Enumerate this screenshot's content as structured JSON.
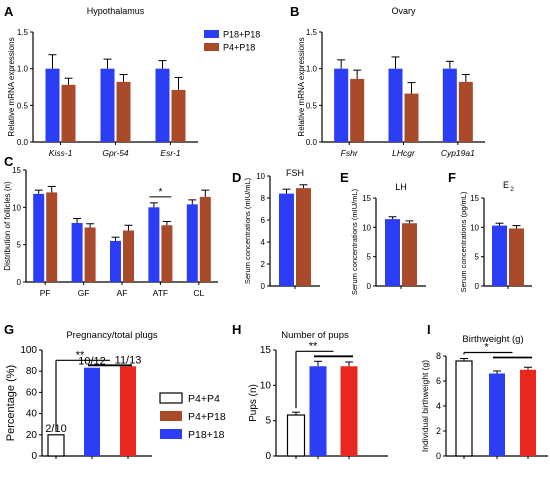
{
  "colors": {
    "blue": "#2b3df5",
    "brown": "#a94a2a",
    "red": "#e8281e",
    "white": "#ffffff",
    "axis": "#000000"
  },
  "chart_data": [
    {
      "panel": "A",
      "type": "bar",
      "title": "Hypothalamus",
      "ylabel": "Relative mRNA expressions",
      "categories": [
        "Kiss-1",
        "Gpr-54",
        "Esr-1"
      ],
      "ylim": [
        0,
        1.5
      ],
      "yticks": [
        "0.0",
        "0.5",
        "1.0",
        "1.5"
      ],
      "series": [
        {
          "name": "P18+P18",
          "color": "blue",
          "values": [
            1.0,
            1.0,
            1.0
          ],
          "errors": [
            0.19,
            0.13,
            0.11
          ]
        },
        {
          "name": "P4+P18",
          "color": "brown",
          "values": [
            0.78,
            0.82,
            0.71
          ],
          "errors": [
            0.09,
            0.1,
            0.17
          ]
        }
      ],
      "legend": "top-right"
    },
    {
      "panel": "B",
      "type": "bar",
      "title": "Ovary",
      "ylabel": "Relative mRNA expressions",
      "categories": [
        "Fshr",
        "LHcgr",
        "Cyp19a1"
      ],
      "ylim": [
        0,
        1.5
      ],
      "yticks": [
        "0.0",
        "0.5",
        "1.0",
        "1.5"
      ],
      "series": [
        {
          "color": "blue",
          "values": [
            1.0,
            1.0,
            1.0
          ],
          "errors": [
            0.12,
            0.16,
            0.1
          ]
        },
        {
          "color": "brown",
          "values": [
            0.86,
            0.66,
            0.82
          ],
          "errors": [
            0.12,
            0.15,
            0.1
          ]
        }
      ]
    },
    {
      "panel": "C",
      "type": "bar",
      "ylabel": "Distribution of follicles (n)",
      "categories": [
        "PF",
        "GF",
        "AF",
        "ATF",
        "CL"
      ],
      "ylim": [
        0,
        15
      ],
      "yticks": [
        "0",
        "5",
        "10",
        "15"
      ],
      "series": [
        {
          "color": "blue",
          "values": [
            11.8,
            7.9,
            5.5,
            10.0,
            10.4
          ],
          "errors": [
            0.5,
            0.6,
            0.5,
            0.6,
            0.6
          ]
        },
        {
          "color": "brown",
          "values": [
            12.0,
            7.3,
            6.9,
            7.6,
            11.4
          ],
          "errors": [
            0.8,
            0.5,
            0.7,
            0.5,
            0.9
          ]
        }
      ],
      "annotations": [
        {
          "text": "*",
          "category": "ATF"
        }
      ]
    },
    {
      "panel": "D",
      "type": "bar",
      "title": "FSH",
      "ylabel": "Serum concentrations (mIU/mL)",
      "ylim": [
        0,
        10
      ],
      "yticks": [
        "0",
        "2",
        "4",
        "6",
        "8",
        "10"
      ],
      "series": [
        {
          "color": "blue",
          "values": [
            8.4
          ],
          "errors": [
            0.4
          ]
        },
        {
          "color": "brown",
          "values": [
            8.9
          ],
          "errors": [
            0.3
          ]
        }
      ]
    },
    {
      "panel": "E",
      "type": "bar",
      "title": "LH",
      "ylabel": "Serum concentrations (mIU/mL)",
      "ylim": [
        0,
        15
      ],
      "yticks": [
        "0",
        "5",
        "10",
        "15"
      ],
      "series": [
        {
          "color": "blue",
          "values": [
            11.4
          ],
          "errors": [
            0.4
          ]
        },
        {
          "color": "brown",
          "values": [
            10.7
          ],
          "errors": [
            0.4
          ]
        }
      ]
    },
    {
      "panel": "F",
      "type": "bar",
      "title": "E2",
      "ylabel": "Serum concentrations (pg/mL)",
      "ylim": [
        0,
        15
      ],
      "yticks": [
        "0",
        "5",
        "10",
        "15"
      ],
      "series": [
        {
          "color": "blue",
          "values": [
            10.3
          ],
          "errors": [
            0.4
          ]
        },
        {
          "color": "brown",
          "values": [
            9.8
          ],
          "errors": [
            0.5
          ]
        }
      ]
    },
    {
      "panel": "G",
      "type": "bar",
      "title": "Pregnancy/total plugs",
      "ylabel": "Percentage (%)",
      "ylim": [
        0,
        100
      ],
      "yticks": [
        "0",
        "20",
        "40",
        "60",
        "80",
        "100"
      ],
      "bars": [
        {
          "color": "white",
          "value": 20,
          "label": "2/10"
        },
        {
          "color": "blue",
          "value": 83.3,
          "label": "10/12"
        },
        {
          "color": "red",
          "value": 84.6,
          "label": "11/13"
        }
      ],
      "annotations": [
        {
          "text": "**"
        }
      ],
      "legend": [
        {
          "name": "P4+P4",
          "color": "white"
        },
        {
          "name": "P4+P18",
          "color": "brown"
        },
        {
          "name": "P18+18",
          "color": "blue"
        }
      ]
    },
    {
      "panel": "H",
      "type": "bar",
      "title": "Number of pups",
      "ylabel": "Pups (n)",
      "ylim": [
        0,
        15
      ],
      "yticks": [
        "0",
        "5",
        "10",
        "15"
      ],
      "bars": [
        {
          "color": "white",
          "value": 5.8,
          "error": 0.4
        },
        {
          "color": "blue",
          "value": 12.7,
          "error": 0.7
        },
        {
          "color": "red",
          "value": 12.7,
          "error": 0.6
        }
      ],
      "annotations": [
        {
          "text": "**"
        }
      ]
    },
    {
      "panel": "I",
      "type": "bar",
      "title": "Birthweight (g)",
      "ylabel": "Individual birthweight (g)",
      "ylim": [
        0,
        8
      ],
      "yticks": [
        "0",
        "2",
        "4",
        "6",
        "8"
      ],
      "bars": [
        {
          "color": "white",
          "value": 7.6,
          "error": 0.2
        },
        {
          "color": "blue",
          "value": 6.6,
          "error": 0.2
        },
        {
          "color": "red",
          "value": 6.9,
          "error": 0.2
        }
      ],
      "annotations": [
        {
          "text": "*"
        }
      ]
    }
  ]
}
